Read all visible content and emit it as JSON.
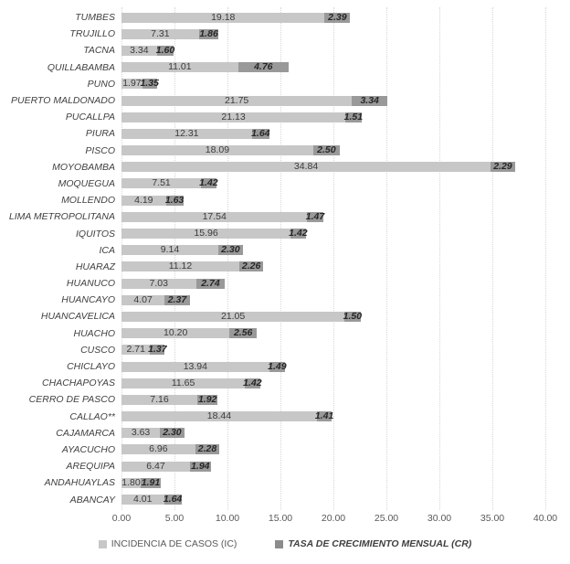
{
  "chart_data": {
    "type": "bar",
    "orientation": "horizontal",
    "stacked": true,
    "categories": [
      "TUMBES",
      "TRUJILLO",
      "TACNA",
      "QUILLABAMBA",
      "PUNO",
      "PUERTO MALDONADO",
      "PUCALLPA",
      "PIURA",
      "PISCO",
      "MOYOBAMBA",
      "MOQUEGUA",
      "MOLLENDO",
      "LIMA METROPOLITANA",
      "IQUITOS",
      "ICA",
      "HUARAZ",
      "HUANUCO",
      "HUANCAYO",
      "HUANCAVELICA",
      "HUACHO",
      "CUSCO",
      "CHICLAYO",
      "CHACHAPOYAS",
      "CERRO DE PASCO",
      "CALLAO**",
      "CAJAMARCA",
      "AYACUCHO",
      "AREQUIPA",
      "ANDAHUAYLAS",
      "ABANCAY"
    ],
    "series": [
      {
        "name": "INCIDENCIA DE CASOS (IC)",
        "color": "#c7c7c7",
        "values": [
          19.18,
          7.31,
          3.34,
          11.01,
          1.97,
          21.75,
          21.13,
          12.31,
          18.09,
          34.84,
          7.51,
          4.19,
          17.54,
          15.96,
          9.14,
          11.12,
          7.03,
          4.07,
          21.05,
          10.2,
          2.71,
          13.94,
          11.65,
          7.16,
          18.44,
          3.63,
          6.96,
          6.47,
          1.8,
          4.01
        ]
      },
      {
        "name": "TASA DE CRECIMIENTO MENSUAL (CR)",
        "color": "#999999",
        "values": [
          2.39,
          1.86,
          1.6,
          4.76,
          1.35,
          3.34,
          1.51,
          1.64,
          2.5,
          2.29,
          1.42,
          1.63,
          1.47,
          1.42,
          2.3,
          2.26,
          2.74,
          2.37,
          1.5,
          2.56,
          1.37,
          1.49,
          1.42,
          1.92,
          1.41,
          2.3,
          2.28,
          1.94,
          1.91,
          1.64
        ]
      }
    ],
    "xlim": [
      0,
      40
    ],
    "xticks": [
      "0.00",
      "5.00",
      "10.00",
      "15.00",
      "20.00",
      "25.00",
      "30.00",
      "35.00",
      "40.00"
    ],
    "grid": true,
    "legend_position": "bottom",
    "value_label_format": "2-decimals"
  }
}
